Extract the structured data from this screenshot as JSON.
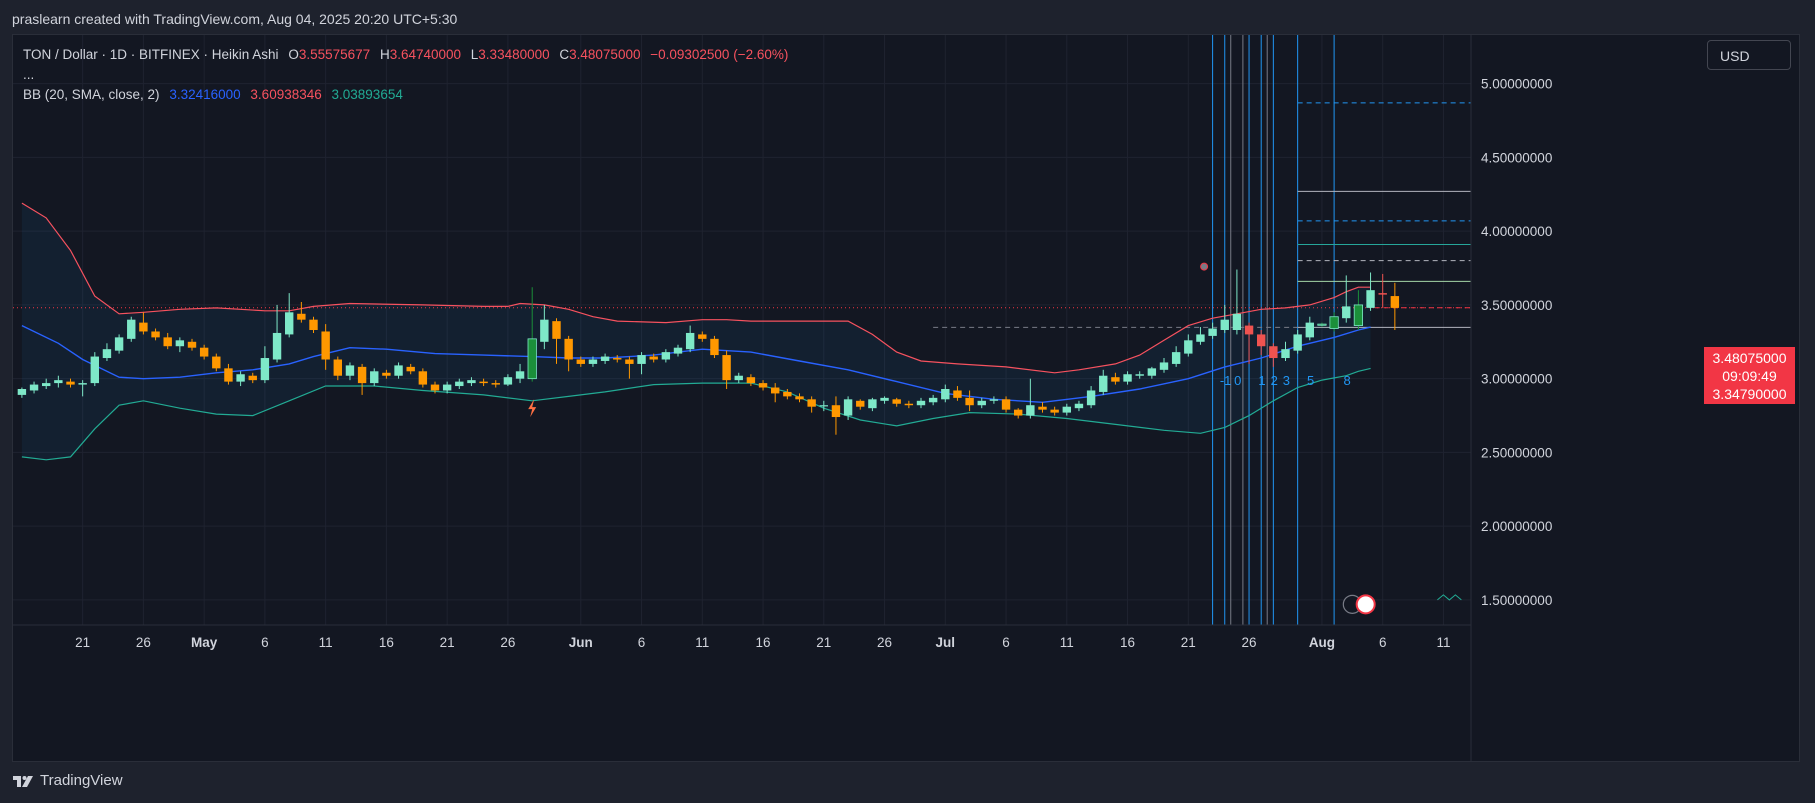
{
  "header": {
    "credit": "praslearn created with TradingView.com, Aug 04, 2025 20:20 UTC+5:30"
  },
  "legend": {
    "symbol": "TON / Dollar · 1D · BITFINEX · Heikin Ashi",
    "o_label": "O",
    "o_value": "3.55575677",
    "h_label": "H",
    "h_value": "3.64740000",
    "l_label": "L",
    "l_value": "3.33480000",
    "c_label": "C",
    "c_value": "3.48075000",
    "change": "−0.09302500 (−2.60%)",
    "more": "...",
    "bb_label": "BB (20, SMA, close, 2)",
    "bb_basis": "3.32416000",
    "bb_upper": "3.60938346",
    "bb_lower": "3.03893654"
  },
  "currency_button": "USD",
  "price_tags": {
    "last": "3.48075000",
    "countdown": "09:09:49",
    "low": "3.34790000"
  },
  "brand": "TradingView",
  "colors": {
    "bg": "#131722",
    "up": "#7ee8c8",
    "down": "#ff9800",
    "upper": "#f7525f",
    "basis": "#2962ff",
    "lower": "#22ab94"
  },
  "chart_data": {
    "type": "candlestick",
    "series_type": "Heikin Ashi",
    "symbol": "TON / Dollar",
    "interval": "1D",
    "exchange": "BITFINEX",
    "ylim": [
      1.33,
      5.33
    ],
    "y_ticks": [
      1.5,
      2.0,
      2.5,
      3.0,
      3.5,
      4.0,
      4.5,
      5.0
    ],
    "y_tick_labels": [
      "1.50000000",
      "2.00000000",
      "2.50000000",
      "3.00000000",
      "3.50000000",
      "4.00000000",
      "4.50000000",
      "5.00000000"
    ],
    "x_ticks": [
      {
        "i": 5,
        "label": "21"
      },
      {
        "i": 10,
        "label": "26"
      },
      {
        "i": 15,
        "label": "May"
      },
      {
        "i": 20,
        "label": "6"
      },
      {
        "i": 25,
        "label": "11"
      },
      {
        "i": 30,
        "label": "16"
      },
      {
        "i": 35,
        "label": "21"
      },
      {
        "i": 40,
        "label": "26"
      },
      {
        "i": 46,
        "label": "Jun"
      },
      {
        "i": 51,
        "label": "6"
      },
      {
        "i": 56,
        "label": "11"
      },
      {
        "i": 61,
        "label": "16"
      },
      {
        "i": 66,
        "label": "21"
      },
      {
        "i": 71,
        "label": "26"
      },
      {
        "i": 76,
        "label": "Jul"
      },
      {
        "i": 81,
        "label": "6"
      },
      {
        "i": 86,
        "label": "11"
      },
      {
        "i": 91,
        "label": "16"
      },
      {
        "i": 96,
        "label": "21"
      },
      {
        "i": 101,
        "label": "26"
      },
      {
        "i": 107,
        "label": "Aug"
      },
      {
        "i": 112,
        "label": "6"
      },
      {
        "i": 117,
        "label": "11"
      }
    ],
    "candles": [
      [
        2.89,
        2.93,
        2.87,
        2.94
      ],
      [
        2.92,
        2.96,
        2.9,
        2.98
      ],
      [
        2.95,
        2.97,
        2.93,
        3.0
      ],
      [
        2.97,
        2.99,
        2.94,
        3.02
      ],
      [
        2.98,
        2.96,
        2.94,
        3.0
      ],
      [
        2.96,
        2.97,
        2.88,
        2.99
      ],
      [
        2.97,
        3.15,
        2.95,
        3.18
      ],
      [
        3.14,
        3.2,
        3.12,
        3.24
      ],
      [
        3.19,
        3.28,
        3.17,
        3.3
      ],
      [
        3.27,
        3.4,
        3.25,
        3.42
      ],
      [
        3.38,
        3.32,
        3.3,
        3.45
      ],
      [
        3.32,
        3.28,
        3.26,
        3.34
      ],
      [
        3.28,
        3.22,
        3.2,
        3.31
      ],
      [
        3.22,
        3.26,
        3.18,
        3.28
      ],
      [
        3.25,
        3.21,
        3.19,
        3.27
      ],
      [
        3.21,
        3.15,
        3.13,
        3.23
      ],
      [
        3.15,
        3.07,
        3.05,
        3.17
      ],
      [
        3.07,
        2.98,
        2.96,
        3.1
      ],
      [
        2.98,
        3.03,
        2.95,
        3.05
      ],
      [
        3.02,
        2.99,
        2.97,
        3.04
      ],
      [
        2.99,
        3.14,
        2.97,
        3.22
      ],
      [
        3.13,
        3.31,
        3.11,
        3.5
      ],
      [
        3.3,
        3.45,
        3.28,
        3.58
      ],
      [
        3.44,
        3.4,
        3.38,
        3.52
      ],
      [
        3.4,
        3.33,
        3.31,
        3.42
      ],
      [
        3.32,
        3.13,
        3.06,
        3.37
      ],
      [
        3.13,
        3.02,
        2.99,
        3.15
      ],
      [
        3.02,
        3.09,
        2.99,
        3.11
      ],
      [
        3.08,
        2.97,
        2.89,
        3.1
      ],
      [
        2.97,
        3.05,
        2.95,
        3.07
      ],
      [
        3.04,
        3.02,
        3.0,
        3.06
      ],
      [
        3.02,
        3.09,
        3.0,
        3.11
      ],
      [
        3.08,
        3.05,
        3.03,
        3.1
      ],
      [
        3.05,
        2.96,
        2.94,
        3.07
      ],
      [
        2.96,
        2.92,
        2.9,
        2.98
      ],
      [
        2.92,
        2.96,
        2.9,
        2.98
      ],
      [
        2.95,
        2.98,
        2.93,
        3.0
      ],
      [
        2.97,
        2.99,
        2.95,
        3.01
      ],
      [
        2.98,
        2.97,
        2.95,
        3.0
      ],
      [
        2.97,
        2.96,
        2.94,
        2.99
      ],
      [
        2.96,
        3.01,
        2.95,
        3.03
      ],
      [
        3.0,
        3.05,
        2.97,
        3.1
      ],
      [
        3.0,
        3.27,
        2.98,
        3.62
      ],
      [
        3.25,
        3.4,
        3.2,
        3.5
      ],
      [
        3.39,
        3.27,
        3.1,
        3.41
      ],
      [
        3.27,
        3.13,
        3.05,
        3.29
      ],
      [
        3.13,
        3.1,
        3.08,
        3.15
      ],
      [
        3.1,
        3.13,
        3.08,
        3.15
      ],
      [
        3.12,
        3.15,
        3.1,
        3.17
      ],
      [
        3.14,
        3.13,
        3.11,
        3.16
      ],
      [
        3.13,
        3.1,
        3.0,
        3.15
      ],
      [
        3.1,
        3.16,
        3.03,
        3.18
      ],
      [
        3.15,
        3.13,
        3.11,
        3.17
      ],
      [
        3.13,
        3.18,
        3.11,
        3.2
      ],
      [
        3.17,
        3.21,
        3.15,
        3.23
      ],
      [
        3.2,
        3.31,
        3.18,
        3.36
      ],
      [
        3.3,
        3.27,
        3.25,
        3.32
      ],
      [
        3.27,
        3.16,
        3.14,
        3.29
      ],
      [
        3.16,
        2.99,
        2.93,
        3.19
      ],
      [
        2.99,
        3.02,
        2.97,
        3.04
      ],
      [
        3.01,
        2.97,
        2.95,
        3.03
      ],
      [
        2.97,
        2.94,
        2.92,
        2.99
      ],
      [
        2.94,
        2.9,
        2.84,
        2.97
      ],
      [
        2.91,
        2.88,
        2.86,
        2.93
      ],
      [
        2.88,
        2.86,
        2.84,
        2.9
      ],
      [
        2.86,
        2.81,
        2.77,
        2.88
      ],
      [
        2.82,
        2.82,
        2.78,
        2.85
      ],
      [
        2.82,
        2.74,
        2.62,
        2.88
      ],
      [
        2.75,
        2.86,
        2.72,
        2.88
      ],
      [
        2.85,
        2.81,
        2.79,
        2.86
      ],
      [
        2.8,
        2.86,
        2.78,
        2.87
      ],
      [
        2.85,
        2.87,
        2.83,
        2.88
      ],
      [
        2.86,
        2.83,
        2.81,
        2.87
      ],
      [
        2.83,
        2.82,
        2.8,
        2.85
      ],
      [
        2.82,
        2.85,
        2.8,
        2.87
      ],
      [
        2.84,
        2.87,
        2.82,
        2.89
      ],
      [
        2.86,
        2.93,
        2.84,
        2.96
      ],
      [
        2.92,
        2.87,
        2.85,
        2.95
      ],
      [
        2.87,
        2.82,
        2.78,
        2.92
      ],
      [
        2.82,
        2.85,
        2.8,
        2.87
      ],
      [
        2.85,
        2.86,
        2.83,
        2.88
      ],
      [
        2.86,
        2.79,
        2.77,
        2.88
      ],
      [
        2.79,
        2.75,
        2.73,
        2.8
      ],
      [
        2.75,
        2.82,
        2.73,
        3.0
      ],
      [
        2.81,
        2.79,
        2.77,
        2.84
      ],
      [
        2.79,
        2.77,
        2.75,
        2.81
      ],
      [
        2.77,
        2.81,
        2.75,
        2.83
      ],
      [
        2.8,
        2.83,
        2.78,
        2.85
      ],
      [
        2.82,
        2.92,
        2.8,
        2.95
      ],
      [
        2.91,
        3.02,
        2.89,
        3.06
      ],
      [
        3.01,
        2.98,
        2.96,
        3.04
      ],
      [
        2.98,
        3.03,
        2.96,
        3.05
      ],
      [
        3.02,
        3.03,
        3.0,
        3.05
      ],
      [
        3.02,
        3.07,
        3.0,
        3.08
      ],
      [
        3.06,
        3.11,
        3.04,
        3.14
      ],
      [
        3.1,
        3.18,
        3.08,
        3.22
      ],
      [
        3.17,
        3.26,
        3.15,
        3.3
      ],
      [
        3.25,
        3.3,
        3.23,
        3.35
      ],
      [
        3.29,
        3.34,
        3.27,
        3.38
      ],
      [
        3.33,
        3.4,
        3.31,
        3.5
      ],
      [
        3.33,
        3.44,
        3.3,
        3.74
      ],
      [
        3.36,
        3.3,
        3.1,
        3.38
      ],
      [
        3.3,
        3.22,
        3.16,
        3.33
      ],
      [
        3.22,
        3.14,
        3.08,
        3.24
      ],
      [
        3.14,
        3.2,
        3.12,
        3.25
      ],
      [
        3.19,
        3.3,
        3.17,
        3.33
      ],
      [
        3.28,
        3.38,
        3.26,
        3.42
      ],
      [
        3.37,
        3.37,
        3.35,
        3.38
      ],
      [
        3.34,
        3.42,
        3.32,
        3.45
      ],
      [
        3.41,
        3.49,
        3.38,
        3.7
      ],
      [
        3.36,
        3.5,
        3.33,
        3.6
      ],
      [
        3.48,
        3.6,
        3.46,
        3.72
      ],
      [
        3.58,
        3.57,
        3.48,
        3.71
      ],
      [
        3.56,
        3.48,
        3.33,
        3.65
      ]
    ],
    "bb_upper": [
      [
        0,
        4.19
      ],
      [
        2,
        4.09
      ],
      [
        4,
        3.87
      ],
      [
        6,
        3.56
      ],
      [
        8,
        3.44
      ],
      [
        10,
        3.45
      ],
      [
        13,
        3.47
      ],
      [
        16,
        3.48
      ],
      [
        20,
        3.46
      ],
      [
        22,
        3.46
      ],
      [
        24,
        3.49
      ],
      [
        27,
        3.51
      ],
      [
        33,
        3.5
      ],
      [
        38,
        3.49
      ],
      [
        40,
        3.49
      ],
      [
        41,
        3.51
      ],
      [
        43,
        3.5
      ],
      [
        45,
        3.47
      ],
      [
        47,
        3.42
      ],
      [
        49,
        3.39
      ],
      [
        53,
        3.38
      ],
      [
        56,
        3.4
      ],
      [
        58,
        3.4
      ],
      [
        60,
        3.39
      ],
      [
        64,
        3.39
      ],
      [
        68,
        3.39
      ],
      [
        70,
        3.3
      ],
      [
        72,
        3.18
      ],
      [
        74,
        3.12
      ],
      [
        77,
        3.1
      ],
      [
        81,
        3.08
      ],
      [
        85,
        3.04
      ],
      [
        87,
        3.06
      ],
      [
        90,
        3.1
      ],
      [
        92,
        3.16
      ],
      [
        94,
        3.26
      ],
      [
        96,
        3.36
      ],
      [
        98,
        3.41
      ],
      [
        100,
        3.44
      ],
      [
        102,
        3.47
      ],
      [
        104,
        3.48
      ],
      [
        106,
        3.5
      ],
      [
        108,
        3.55
      ],
      [
        109,
        3.59
      ],
      [
        110,
        3.62
      ],
      [
        111,
        3.62
      ]
    ],
    "bb_basis": [
      [
        0,
        3.36
      ],
      [
        3,
        3.24
      ],
      [
        5,
        3.13
      ],
      [
        8,
        3.01
      ],
      [
        10,
        3.0
      ],
      [
        13,
        3.01
      ],
      [
        16,
        3.04
      ],
      [
        19,
        3.06
      ],
      [
        22,
        3.1
      ],
      [
        24,
        3.15
      ],
      [
        27,
        3.21
      ],
      [
        30,
        3.2
      ],
      [
        34,
        3.17
      ],
      [
        38,
        3.16
      ],
      [
        42,
        3.15
      ],
      [
        45,
        3.14
      ],
      [
        48,
        3.14
      ],
      [
        52,
        3.16
      ],
      [
        56,
        3.2
      ],
      [
        60,
        3.18
      ],
      [
        64,
        3.12
      ],
      [
        68,
        3.06
      ],
      [
        72,
        2.98
      ],
      [
        76,
        2.9
      ],
      [
        80,
        2.86
      ],
      [
        84,
        2.84
      ],
      [
        88,
        2.88
      ],
      [
        92,
        2.93
      ],
      [
        96,
        3.0
      ],
      [
        99,
        3.08
      ],
      [
        102,
        3.14
      ],
      [
        105,
        3.22
      ],
      [
        108,
        3.28
      ],
      [
        110,
        3.33
      ],
      [
        111,
        3.35
      ]
    ],
    "bb_lower": [
      [
        0,
        2.47
      ],
      [
        2,
        2.45
      ],
      [
        4,
        2.47
      ],
      [
        6,
        2.66
      ],
      [
        8,
        2.82
      ],
      [
        10,
        2.85
      ],
      [
        13,
        2.8
      ],
      [
        16,
        2.76
      ],
      [
        19,
        2.75
      ],
      [
        22,
        2.85
      ],
      [
        25,
        2.95
      ],
      [
        29,
        2.95
      ],
      [
        33,
        2.92
      ],
      [
        38,
        2.89
      ],
      [
        42,
        2.85
      ],
      [
        45,
        2.88
      ],
      [
        48,
        2.91
      ],
      [
        52,
        2.96
      ],
      [
        56,
        2.97
      ],
      [
        60,
        2.97
      ],
      [
        63,
        2.91
      ],
      [
        66,
        2.8
      ],
      [
        69,
        2.72
      ],
      [
        72,
        2.68
      ],
      [
        75,
        2.73
      ],
      [
        78,
        2.77
      ],
      [
        82,
        2.76
      ],
      [
        86,
        2.73
      ],
      [
        90,
        2.69
      ],
      [
        94,
        2.65
      ],
      [
        97,
        2.63
      ],
      [
        99,
        2.67
      ],
      [
        101,
        2.75
      ],
      [
        103,
        2.85
      ],
      [
        105,
        2.94
      ],
      [
        107,
        2.99
      ],
      [
        109,
        3.02
      ],
      [
        110,
        3.05
      ],
      [
        111,
        3.07
      ]
    ],
    "last_price": 3.48075,
    "marked_low": 3.3479,
    "fib_time_zones": {
      "labels": [
        "-1",
        "0",
        "1",
        "2",
        "3",
        "5",
        "8"
      ],
      "indices": [
        98,
        99,
        101,
        102,
        103,
        105,
        108
      ]
    },
    "horizontal_levels": [
      {
        "y": 3.3479,
        "style": "solid",
        "color": "#b2b5be"
      },
      {
        "y": 3.66,
        "style": "solid",
        "color": "#a5d6a7"
      },
      {
        "y": 3.8,
        "style": "dashed",
        "color": "#b2b5be"
      },
      {
        "y": 3.91,
        "style": "solid",
        "color": "#26a69a"
      },
      {
        "y": 4.07,
        "style": "dashed",
        "color": "#2196f3"
      },
      {
        "y": 4.27,
        "style": "solid",
        "color": "#b2b5be"
      },
      {
        "y": 4.87,
        "style": "dashed",
        "color": "#2196f3"
      }
    ]
  }
}
